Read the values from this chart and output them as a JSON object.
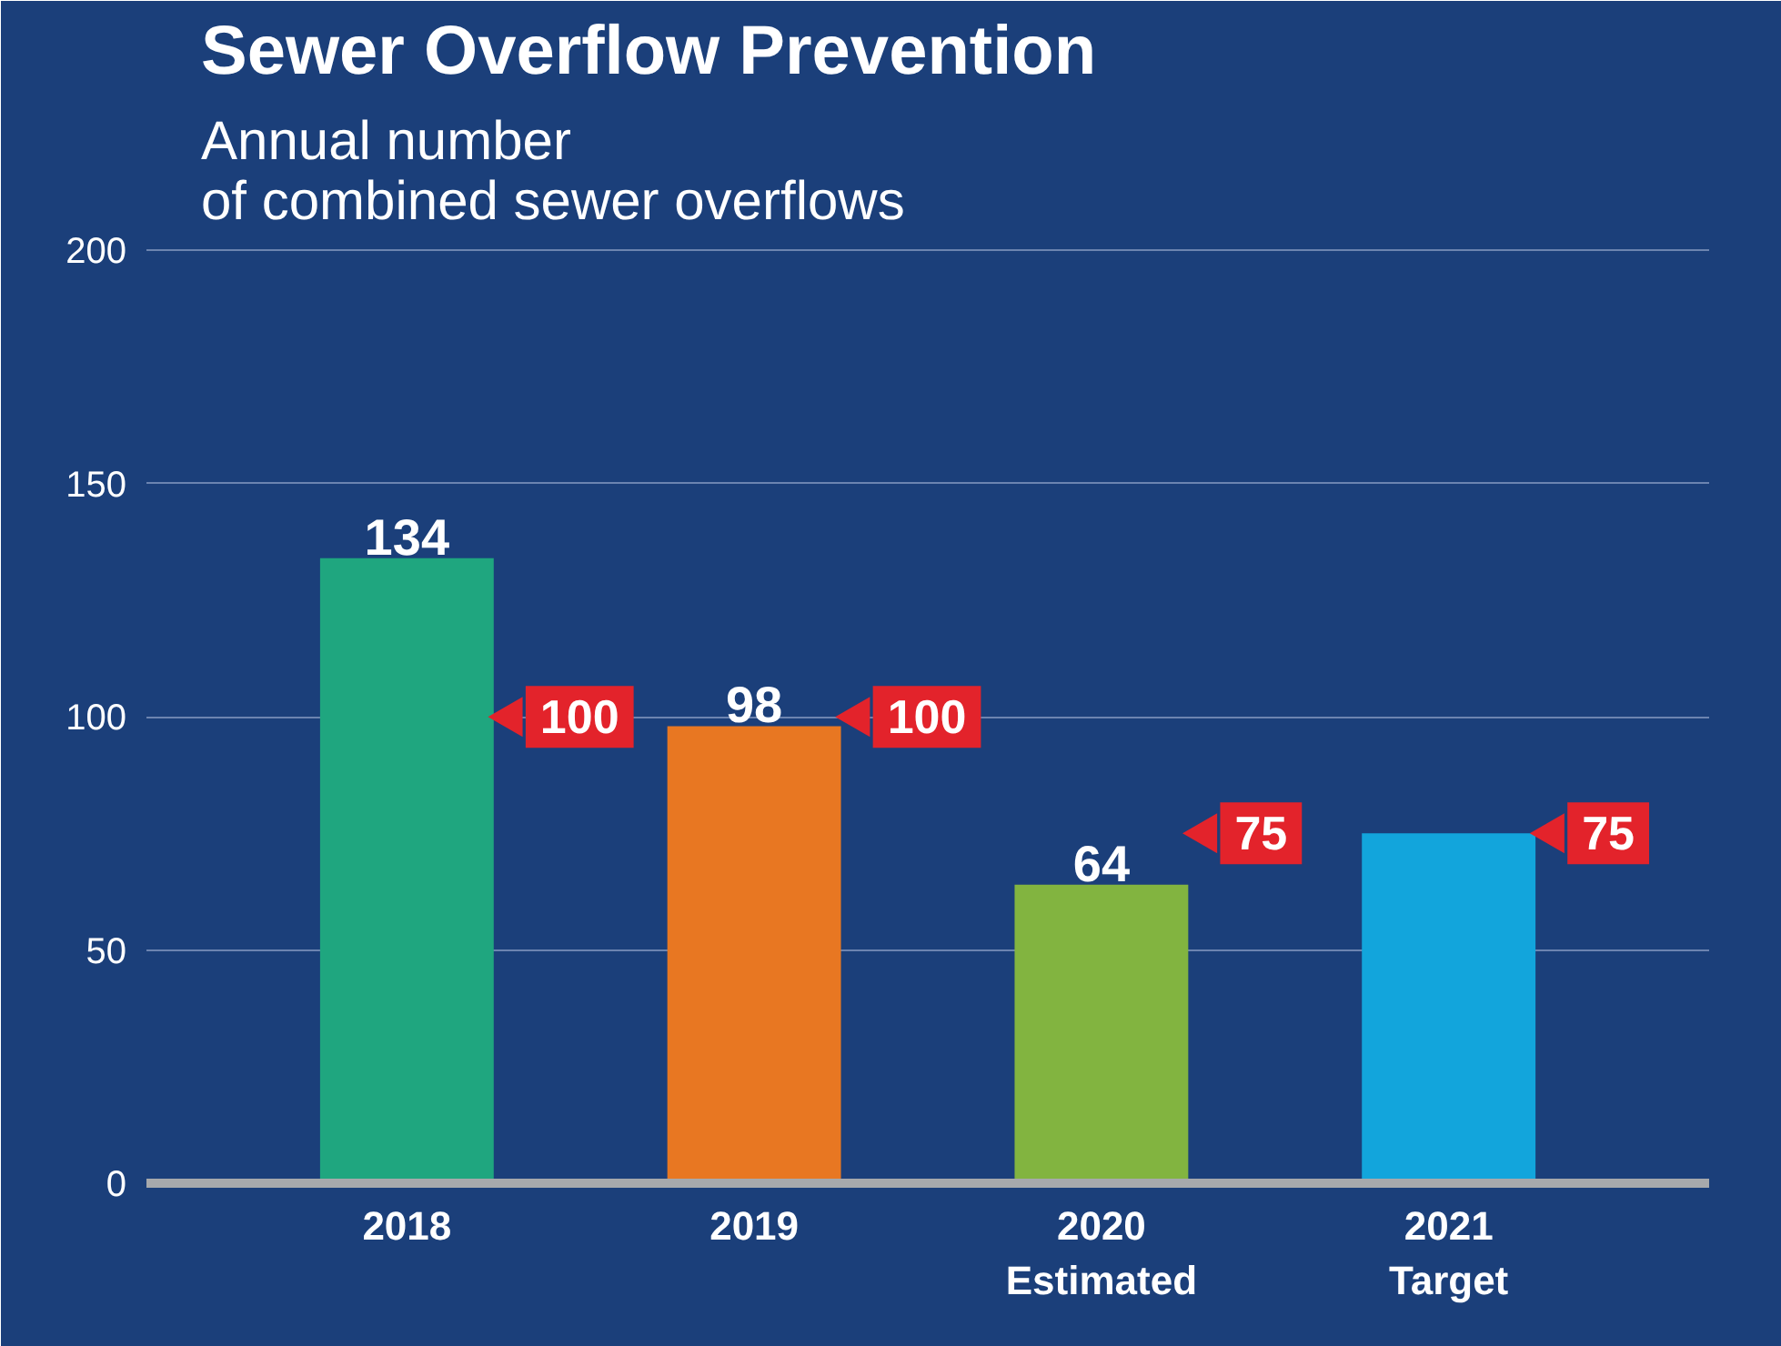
{
  "chart_data": {
    "type": "bar",
    "title": "Sewer Overflow Prevention",
    "subtitle": "Annual number\nof combined sewer overflows",
    "categories": [
      "2018",
      "2019",
      "2020\nEstimated",
      "2021\nTarget"
    ],
    "series": [
      {
        "colors": [
          "#1fa67f",
          "#e87722",
          "#82b440",
          "#12a5dc"
        ],
        "values": [
          134,
          98,
          64,
          75
        ],
        "value_labels": [
          "134",
          "98",
          "64",
          null
        ]
      },
      {
        "type": "scatter",
        "color": "#e3232b",
        "values": [
          100,
          100,
          75,
          75
        ],
        "data_labels": true
      }
    ],
    "marker": "triangle",
    "ylim": [
      0,
      200
    ],
    "yticks": [
      0,
      50,
      100,
      150,
      200
    ],
    "grid": "y"
  }
}
